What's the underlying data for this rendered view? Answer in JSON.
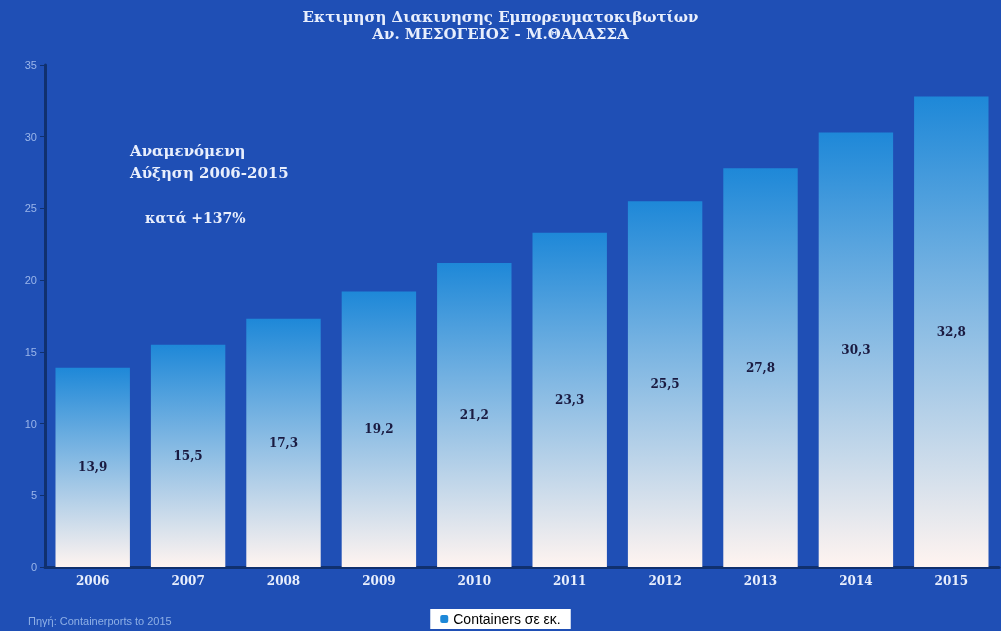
{
  "chart_data": {
    "type": "bar",
    "title": "Εκτιμηση Διακινησης Εμπορευματοκιβωτίων",
    "subtitle": "Αν. ΜΕΣΟΓΕΙΟΣ - Μ.ΘΑΛΑΣΣΑ",
    "categories": [
      "2006",
      "2007",
      "2008",
      "2009",
      "2010",
      "2011",
      "2012",
      "2013",
      "2014",
      "2015"
    ],
    "series": [
      {
        "name": "Containers σε εκ.",
        "color": "#1e88d8",
        "values": [
          13.9,
          15.5,
          17.3,
          19.2,
          21.2,
          23.3,
          25.5,
          27.8,
          30.3,
          32.8
        ],
        "value_labels": [
          "13,9",
          "15,5",
          "17,3",
          "19,2",
          "21,2",
          "23,3",
          "25,5",
          "27,8",
          "30,3",
          "32,8"
        ]
      }
    ],
    "ylim": [
      0,
      35
    ],
    "yticks": [
      0,
      5,
      10,
      15,
      20,
      25,
      30,
      35
    ],
    "grid": false,
    "legend": "bottom",
    "annotations": [
      "Αναμενόμενη\nΑύξηση 2006-2015",
      "κατά +137%",
      "Πηγή: Containerports to 2015"
    ]
  }
}
